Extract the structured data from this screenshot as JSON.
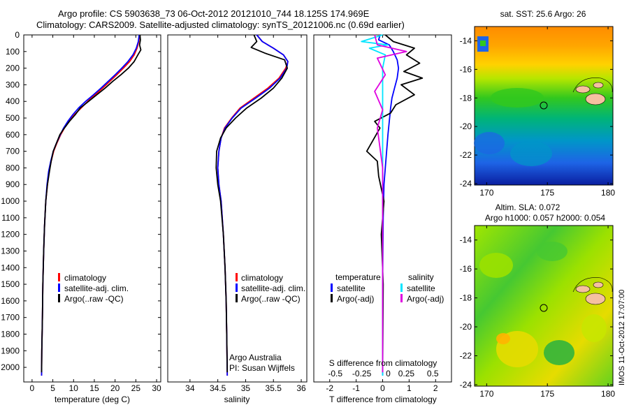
{
  "header": {
    "line1": "Argo profile: CS 5903638_73 06-Oct-2012 20121010_744 18.125S 174.969E",
    "line2": "Climatology: CARS2009. Satellite-adjusted climatology: synTS_20121006.nc (0.69d earlier)"
  },
  "colors": {
    "climatology": "#ff0000",
    "satellite": "#0000ff",
    "argo": "#000000",
    "satellite_diff_s": "#00e5ff",
    "argo_diff_s": "#e000e0"
  },
  "chart_data": [
    {
      "type": "line",
      "id": "temperature",
      "xlabel": "temperature (deg C)",
      "xlim": [
        -2,
        31
      ],
      "ylim": [
        0,
        2050
      ],
      "y_inverted": true,
      "xticks": [
        0,
        5,
        10,
        15,
        20,
        25,
        30
      ],
      "yticks": [
        0,
        100,
        200,
        300,
        400,
        500,
        600,
        700,
        800,
        900,
        1000,
        1100,
        1200,
        1300,
        1400,
        1500,
        1600,
        1700,
        1800,
        1900,
        2000
      ],
      "legend": [
        "climatology",
        "satellite-adj. clim.",
        "Argo(..raw -QC)"
      ],
      "series": [
        {
          "name": "climatology",
          "color_key": "climatology",
          "x": [
            25.9,
            25.7,
            25.3,
            24.6,
            23.5,
            22.0,
            20.4,
            18.7,
            17.0,
            15.2,
            13.4,
            11.8,
            10.2,
            8.9,
            7.8,
            6.9,
            6.0,
            5.2,
            4.6,
            4.1,
            3.7,
            3.3,
            3.0,
            2.8,
            2.6,
            2.5,
            2.35,
            2.3
          ],
          "y": [
            0,
            40,
            80,
            120,
            160,
            200,
            240,
            280,
            320,
            360,
            400,
            440,
            480,
            520,
            560,
            600,
            650,
            700,
            760,
            820,
            900,
            1000,
            1150,
            1300,
            1500,
            1700,
            1900,
            2050
          ]
        },
        {
          "name": "satellite-adj. clim.",
          "color_key": "satellite",
          "x": [
            25.8,
            25.6,
            25.1,
            24.3,
            23.1,
            21.6,
            20.0,
            18.3,
            16.6,
            14.8,
            12.9,
            11.2,
            9.8,
            8.6,
            7.6,
            6.8,
            5.9,
            5.1,
            4.5,
            4.0,
            3.6,
            3.3,
            3.0,
            2.8,
            2.6,
            2.5,
            2.35,
            2.3
          ],
          "y": [
            0,
            40,
            80,
            120,
            160,
            200,
            240,
            280,
            320,
            360,
            400,
            440,
            480,
            520,
            560,
            600,
            650,
            700,
            760,
            820,
            900,
            1000,
            1150,
            1300,
            1500,
            1700,
            1900,
            2050
          ]
        },
        {
          "name": "Argo(..raw -QC)",
          "color_key": "argo",
          "x": [
            26.0,
            26.1,
            25.9,
            26.2,
            25.5,
            24.6,
            23.2,
            21.4,
            19.4,
            17.6,
            15.6,
            13.6,
            11.6,
            10.4,
            9.0,
            7.8,
            6.7,
            5.9,
            5.1,
            4.6,
            4.2,
            3.7,
            3.3,
            3.0,
            2.8,
            2.6,
            2.5,
            2.35,
            2.3
          ],
          "y": [
            0,
            30,
            60,
            90,
            120,
            160,
            200,
            240,
            280,
            320,
            360,
            400,
            440,
            480,
            520,
            560,
            600,
            650,
            700,
            760,
            820,
            900,
            1000,
            1150,
            1300,
            1500,
            1700,
            1900,
            2030
          ]
        }
      ]
    },
    {
      "type": "line",
      "id": "salinity",
      "xlabel": "salinity",
      "xlim": [
        33.6,
        36.1
      ],
      "ylim": [
        0,
        2050
      ],
      "y_inverted": true,
      "xticks": [
        34,
        34.5,
        35,
        35.5,
        36
      ],
      "legend": [
        "climatology",
        "satellite-adj. clim.",
        "Argo(..raw -QC)"
      ],
      "annotations": [
        "Argo Australia",
        "PI: Susan Wijffels"
      ],
      "series": [
        {
          "name": "climatology",
          "color_key": "climatology",
          "x": [
            35.2,
            35.3,
            35.5,
            35.68,
            35.76,
            35.72,
            35.6,
            35.4,
            35.15,
            34.9,
            34.75,
            34.62,
            34.56,
            34.52,
            34.5,
            34.52,
            34.56,
            34.6,
            34.63,
            34.65,
            34.66,
            34.67
          ],
          "y": [
            0,
            40,
            80,
            120,
            160,
            200,
            260,
            320,
            380,
            440,
            500,
            560,
            620,
            700,
            800,
            900,
            1000,
            1200,
            1400,
            1600,
            1800,
            2050
          ]
        },
        {
          "name": "satellite-adj. clim.",
          "color_key": "satellite",
          "x": [
            35.2,
            35.3,
            35.5,
            35.68,
            35.76,
            35.74,
            35.62,
            35.43,
            35.18,
            34.92,
            34.76,
            34.63,
            34.56,
            34.52,
            34.5,
            34.52,
            34.56,
            34.6,
            34.63,
            34.65,
            34.66,
            34.67
          ],
          "y": [
            0,
            40,
            80,
            120,
            160,
            200,
            260,
            320,
            380,
            440,
            500,
            560,
            620,
            700,
            800,
            900,
            1000,
            1200,
            1400,
            1600,
            1800,
            2050
          ]
        },
        {
          "name": "Argo(..raw -QC)",
          "color_key": "argo",
          "x": [
            35.15,
            35.2,
            35.1,
            35.35,
            35.7,
            35.75,
            35.65,
            35.5,
            35.28,
            35.02,
            34.82,
            34.65,
            34.55,
            34.48,
            34.47,
            34.5,
            34.55,
            34.6,
            34.63,
            34.65,
            34.66,
            34.67
          ],
          "y": [
            0,
            40,
            75,
            110,
            150,
            200,
            260,
            320,
            380,
            440,
            500,
            560,
            620,
            700,
            800,
            900,
            1000,
            1200,
            1400,
            1600,
            1800,
            2030
          ]
        }
      ]
    },
    {
      "type": "line",
      "id": "difference",
      "xlabel": "T difference from climatology",
      "xlabel_top": "S difference from climatology",
      "xlim": [
        -2.6,
        2.6
      ],
      "ylim": [
        0,
        2050
      ],
      "y_inverted": true,
      "xticks": [
        -2,
        -1,
        0,
        1,
        2
      ],
      "xticks_s": [
        -0.5,
        -0.25,
        0,
        0.25,
        0.5
      ],
      "legend_groups": [
        {
          "title": "temperature",
          "items": [
            "satellite",
            "Argo(-adj)"
          ]
        },
        {
          "title": "salinity",
          "items": [
            "satellite",
            "Argo(-adj)"
          ]
        }
      ],
      "series": [
        {
          "name": "temperature satellite",
          "color_key": "satellite",
          "x": [
            -0.1,
            -0.15,
            0.25,
            0.4,
            0.55,
            0.6,
            0.55,
            0.45,
            0.35,
            0.3,
            0.25,
            0.2,
            0.15,
            0.1,
            0.05,
            0.02,
            0.0,
            0.0
          ],
          "y": [
            0,
            30,
            60,
            100,
            150,
            200,
            260,
            320,
            380,
            440,
            520,
            600,
            700,
            800,
            900,
            1100,
            1500,
            2050
          ]
        },
        {
          "name": "temperature Argo(-adj)",
          "color_key": "argo",
          "x": [
            0.1,
            0.4,
            1.2,
            0.9,
            1.4,
            0.8,
            1.5,
            0.7,
            1.2,
            0.5,
            0.3,
            -0.3,
            -0.1,
            -0.6,
            -0.2,
            -0.15,
            0.05,
            -0.05,
            0.02,
            0.0
          ],
          "y": [
            0,
            40,
            80,
            120,
            170,
            220,
            260,
            300,
            360,
            420,
            470,
            520,
            560,
            700,
            760,
            850,
            1000,
            1200,
            1500,
            2030
          ]
        },
        {
          "name": "salinity satellite",
          "color_key": "satellite_diff_s",
          "x": [
            0.0,
            -0.8,
            0.2,
            -0.5,
            0.1,
            0.0,
            0.0,
            0.0
          ],
          "y": [
            0,
            40,
            60,
            80,
            120,
            200,
            600,
            2050
          ]
        },
        {
          "name": "salinity Argo(-adj)",
          "color_key": "argo_diff_s",
          "x": [
            -0.3,
            -0.2,
            0.9,
            -0.2,
            0.1,
            -0.3,
            0.0,
            -0.2,
            0.0,
            0.0
          ],
          "y": [
            0,
            60,
            100,
            140,
            240,
            340,
            450,
            560,
            800,
            2030
          ]
        }
      ]
    }
  ],
  "diff_legend": {
    "temperature_title": "temperature",
    "salinity_title": "salinity",
    "satellite_label": "satellite",
    "argo_label": "Argo(-adj)"
  },
  "maps": {
    "sst_title": "sat. SST: 25.6 Argo: 26",
    "sla_title_line1": "Altim. SLA: 0.072",
    "sla_title_line2": "Argo h1000: 0.057 h2000: 0.054",
    "yticks": [
      -14,
      -16,
      -18,
      -20,
      -22,
      -24
    ],
    "xticks": [
      170,
      175,
      180
    ],
    "float_position": {
      "lon": 174.969,
      "lat": -18.125
    },
    "watermark": "IMOS 11-Oct-2012 17:07:00"
  }
}
